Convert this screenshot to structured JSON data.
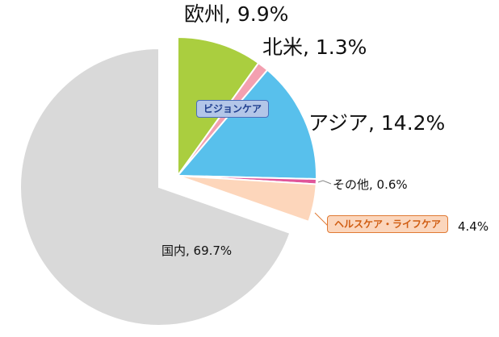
{
  "chart_data": {
    "type": "pie",
    "categories": [
      "国内",
      "欧州",
      "北米",
      "アジア",
      "その他",
      "ヘルスケア・ライフケア"
    ],
    "values": [
      69.7,
      9.9,
      1.3,
      14.2,
      0.6,
      4.4
    ],
    "slice_labels": [
      "国内, 69.7%",
      "欧州, 9.9%",
      "北米, 1.3%",
      "アジア, 14.2%",
      "その他, 0.6%",
      "4.4%"
    ],
    "colors": [
      "#d9d9d9",
      "#aace3f",
      "#f3a0b0",
      "#58c0ec",
      "#e0559a",
      "#fdd6bb"
    ],
    "groups": [
      {
        "label": "ビジョンケア",
        "members": [
          "欧州",
          "北米",
          "アジア",
          "その他"
        ]
      },
      {
        "label": "ヘルスケア・ライフケア",
        "members": [
          "ヘルスケア・ライフケア"
        ]
      }
    ],
    "title": ""
  }
}
